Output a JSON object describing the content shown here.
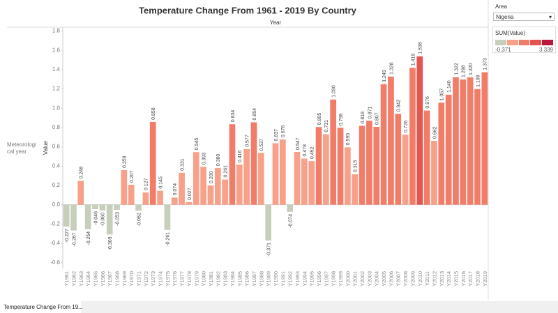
{
  "chart_data": {
    "type": "bar",
    "title": "Temperature Change From 1961 - 2019 By Country",
    "column_header": "Year",
    "row_header": "Meteorological year",
    "y_label": "Value",
    "categories": [
      "Y1961",
      "Y1962",
      "Y1963",
      "Y1964",
      "Y1965",
      "Y1966",
      "Y1967",
      "Y1968",
      "Y1969",
      "Y1970",
      "Y1971",
      "Y1972",
      "Y1973",
      "Y1974",
      "Y1975",
      "Y1976",
      "Y1977",
      "Y1978",
      "Y1979",
      "Y1980",
      "Y1981",
      "Y1982",
      "Y1983",
      "Y1984",
      "Y1985",
      "Y1986",
      "Y1987",
      "Y1988",
      "Y1989",
      "Y1990",
      "Y1991",
      "Y1992",
      "Y1993",
      "Y1994",
      "Y1995",
      "Y1996",
      "Y1997",
      "Y1998",
      "Y1999",
      "Y2000",
      "Y2001",
      "Y2002",
      "Y2003",
      "Y2004",
      "Y2005",
      "Y2006",
      "Y2007",
      "Y2008",
      "Y2009",
      "Y2010",
      "Y2011",
      "Y2012",
      "Y2013",
      "Y2014",
      "Y2015",
      "Y2016",
      "Y2017",
      "Y2018",
      "Y2019"
    ],
    "values": [
      -0.227,
      -0.267,
      0.248,
      -0.254,
      -0.046,
      -0.06,
      -0.309,
      -0.053,
      0.359,
      0.207,
      -0.062,
      0.127,
      0.858,
      0.145,
      -0.261,
      0.074,
      0.331,
      0.027,
      0.545,
      0.393,
      0.2,
      0.38,
      0.261,
      0.834,
      0.416,
      0.577,
      0.854,
      0.537,
      -0.371,
      0.637,
      0.676,
      -0.074,
      0.547,
      0.478,
      0.452,
      0.805,
      0.731,
      1.09,
      0.798,
      0.595,
      0.315,
      0.818,
      0.871,
      0.807,
      1.249,
      1.328,
      0.942,
      0.726,
      1.419,
      1.538,
      0.976,
      0.662,
      1.057,
      1.14,
      1.322,
      1.298,
      1.32,
      1.198,
      1.373
    ],
    "value_labels": [
      "-0.227",
      "-0.267",
      "0.248",
      "-0.254",
      "-0.046",
      "-0.060",
      "-0.309",
      "-0.053",
      "0.359",
      "0.207",
      "-0.062",
      "0.127",
      "0.858",
      "0.145",
      "-0.261",
      "0.074",
      "0.331",
      "0.027",
      "0.545",
      "0.393",
      "0.200",
      "0.380",
      "0.261",
      "0.834",
      "0.416",
      "0.577",
      "0.854",
      "0.537",
      "-0.371",
      "0.637",
      "0.676",
      "-0.074",
      "0.547",
      "0.478",
      "0.452",
      "0.805",
      "0.731",
      "1.090",
      "0.798",
      "0.595",
      "0.315",
      "0.818",
      "0.871",
      "0.807",
      "1.249",
      "1.328",
      "0.942",
      "0.726",
      "1.419",
      "1.538",
      "0.976",
      "0.662",
      "1.057",
      "1.140",
      "1.322",
      "1.298",
      "1.320",
      "1.198",
      "1.373"
    ],
    "ylim": [
      -0.66,
      1.84
    ],
    "yticks": [
      -0.6,
      -0.4,
      -0.2,
      {
        "value": 0,
        "label": "0.0"
      },
      0.2,
      0.4,
      0.6,
      0.8,
      {
        "value": 1,
        "label": "1.0"
      },
      1.2,
      1.4,
      1.6,
      1.8
    ],
    "grid": false,
    "palette": [
      "#c7cfbc",
      "#f7a08a",
      "#f17d69",
      "#e3554d",
      "#b9173b"
    ],
    "color_title": "SUM(Value)",
    "color_range": [
      -0.371,
      3.339
    ]
  },
  "filter": {
    "title": "Area",
    "value": "Nigeria"
  },
  "tab": "Temperature Change From 19..."
}
